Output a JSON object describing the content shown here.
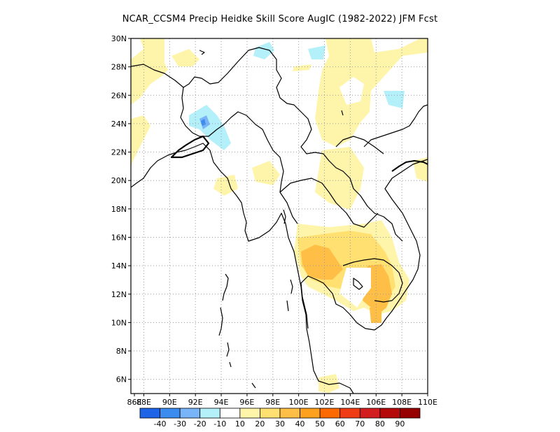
{
  "title": "NCAR_CCSM4 Precip Heidke Skill Score AugIC (1982-2022) JFM Fcst",
  "map": {
    "lon_range": [
      87,
      110
    ],
    "lat_range": [
      5,
      30
    ],
    "lon_ticks": [
      "86E",
      "88E",
      "90E",
      "92E",
      "94E",
      "96E",
      "98E",
      "100E",
      "102E",
      "104E",
      "106E",
      "108E",
      "110E"
    ],
    "lat_ticks": [
      "6N",
      "8N",
      "10N",
      "12N",
      "14N",
      "16N",
      "18N",
      "20N",
      "22N",
      "24N",
      "26N",
      "28N",
      "30N"
    ],
    "gridlines": "dotted"
  },
  "colorbar": {
    "labels": [
      "-40",
      "-30",
      "-20",
      "-10",
      "10",
      "20",
      "30",
      "40",
      "50",
      "60",
      "70",
      "80",
      "90"
    ],
    "colors": [
      "#1e64e6",
      "#3c8cf0",
      "#78b4f8",
      "#b4f0fa",
      "#ffffff",
      "#fff5aa",
      "#ffe070",
      "#ffbe46",
      "#ffa01e",
      "#ff6a00",
      "#f03c14",
      "#d21e1e",
      "#b40a0a",
      "#960000"
    ]
  }
}
